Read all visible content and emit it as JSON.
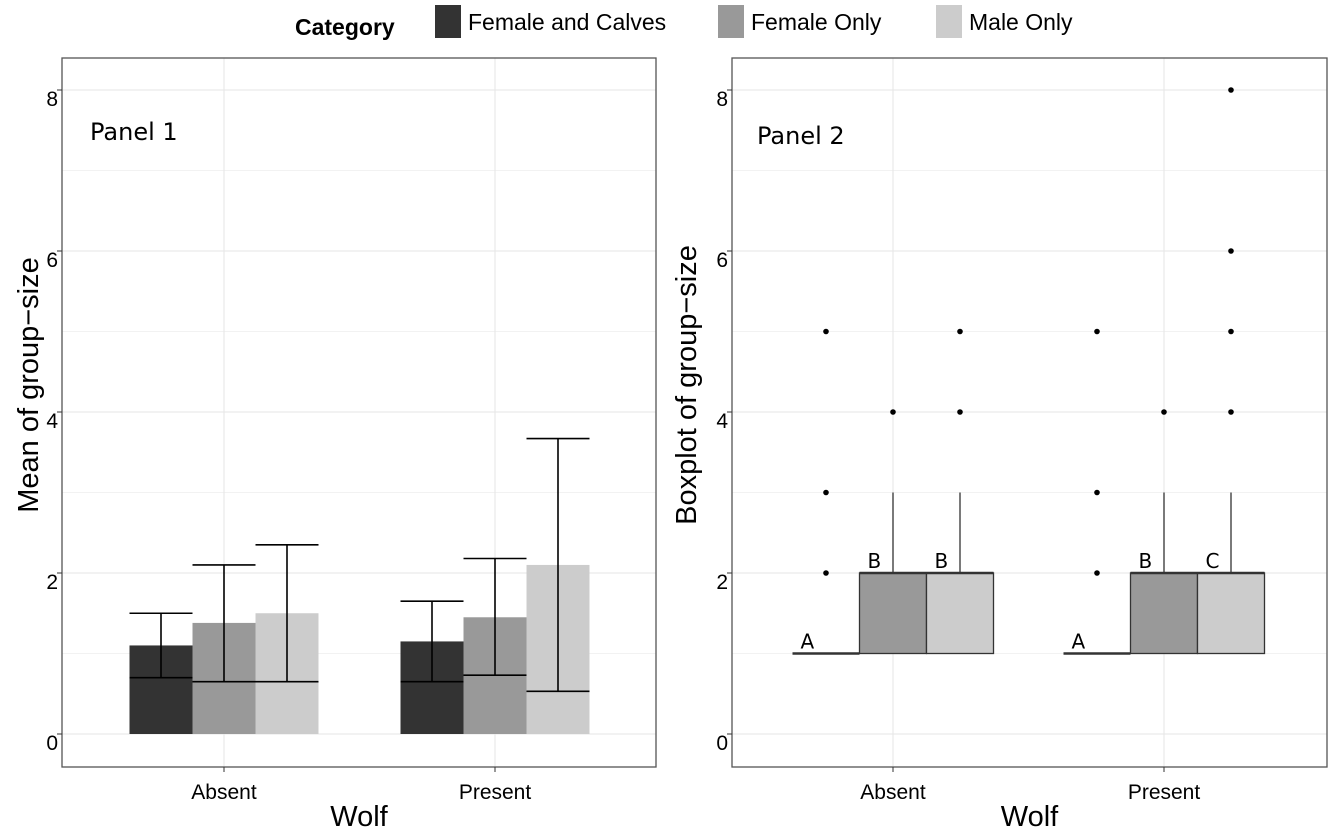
{
  "legend": {
    "title": "Category",
    "items": [
      {
        "label": "Female and Calves",
        "color": "#333333"
      },
      {
        "label": "Female Only",
        "color": "#999999"
      },
      {
        "label": "Male Only",
        "color": "#cccccc"
      }
    ]
  },
  "chart_data": [
    {
      "type": "bar",
      "panel_label": "Panel 1",
      "xlabel": "Wolf",
      "ylabel": "Mean of group−size",
      "ylim": [
        0,
        8
      ],
      "yticks": [
        0,
        2,
        4,
        6,
        8
      ],
      "categories": [
        "Absent",
        "Present"
      ],
      "grid": true,
      "series": [
        {
          "name": "Female and Calves",
          "values": [
            1.1,
            1.15
          ],
          "error_low": [
            0.7,
            0.65
          ],
          "error_high": [
            1.5,
            1.65
          ]
        },
        {
          "name": "Female Only",
          "values": [
            1.38,
            1.45
          ],
          "error_low": [
            0.65,
            0.73
          ],
          "error_high": [
            2.1,
            2.18
          ]
        },
        {
          "name": "Male Only",
          "values": [
            1.5,
            2.1
          ],
          "error_low": [
            0.65,
            0.53
          ],
          "error_high": [
            2.35,
            3.67
          ]
        }
      ]
    },
    {
      "type": "box",
      "panel_label": "Panel 2",
      "xlabel": "Wolf",
      "ylabel": "Boxplot of group−size",
      "ylim": [
        0,
        8
      ],
      "yticks": [
        0,
        2,
        4,
        6,
        8
      ],
      "categories": [
        "Absent",
        "Present"
      ],
      "grid": true,
      "series": [
        {
          "name": "Female and Calves",
          "boxes": [
            {
              "q1": 1,
              "median": 1,
              "q3": 1,
              "whisker_low": 1,
              "whisker_high": 1,
              "outliers": [
                2,
                3,
                5
              ],
              "letter": "A"
            },
            {
              "q1": 1,
              "median": 1,
              "q3": 1,
              "whisker_low": 1,
              "whisker_high": 1,
              "outliers": [
                2,
                3,
                5
              ],
              "letter": "A"
            }
          ]
        },
        {
          "name": "Female Only",
          "boxes": [
            {
              "q1": 1,
              "median": 2,
              "q3": 2,
              "whisker_low": 1,
              "whisker_high": 3,
              "outliers": [
                4
              ],
              "letter": "B"
            },
            {
              "q1": 1,
              "median": 2,
              "q3": 2,
              "whisker_low": 1,
              "whisker_high": 3,
              "outliers": [
                4
              ],
              "letter": "B"
            }
          ]
        },
        {
          "name": "Male Only",
          "boxes": [
            {
              "q1": 1,
              "median": 2,
              "q3": 2,
              "whisker_low": 1,
              "whisker_high": 3,
              "outliers": [
                4,
                5
              ],
              "letter": "B"
            },
            {
              "q1": 1,
              "median": 2,
              "q3": 2,
              "whisker_low": 1,
              "whisker_high": 3,
              "outliers": [
                4,
                5,
                6,
                8
              ],
              "letter": "C"
            }
          ]
        }
      ]
    }
  ]
}
